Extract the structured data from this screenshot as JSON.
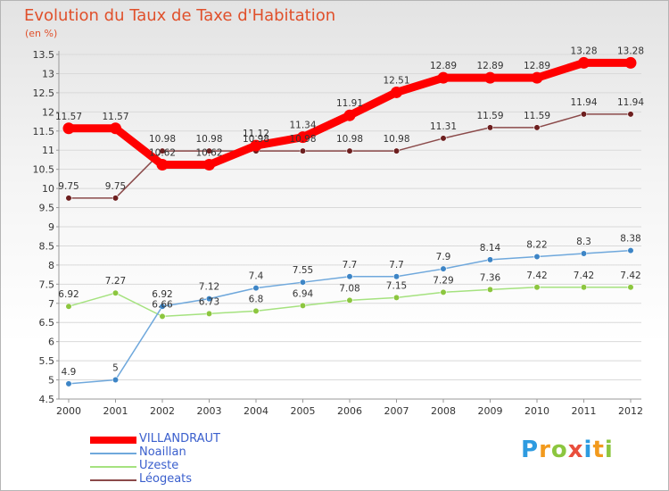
{
  "title": "Evolution du Taux de Taxe d'Habitation",
  "subtitle": "(en %)",
  "logo": {
    "text": "Proxiti",
    "letters": [
      {
        "ch": "P",
        "color": "#2e9be0"
      },
      {
        "ch": "r",
        "color": "#f29a1d"
      },
      {
        "ch": "o",
        "color": "#8cc63f"
      },
      {
        "ch": "x",
        "color": "#e94e3c"
      },
      {
        "ch": "i",
        "color": "#2e9be0"
      },
      {
        "ch": "t",
        "color": "#f29a1d"
      },
      {
        "ch": "i",
        "color": "#8cc63f"
      }
    ]
  },
  "chart_data": {
    "type": "line",
    "x": [
      "2000",
      "2001",
      "2002",
      "2003",
      "2004",
      "2005",
      "2006",
      "2007",
      "2008",
      "2009",
      "2010",
      "2011",
      "2012"
    ],
    "ylim": [
      4.5,
      13.5
    ],
    "yticks": [
      "4.5",
      "5",
      "5.5",
      "6",
      "6.5",
      "7",
      "7.5",
      "8",
      "8.5",
      "9",
      "9.5",
      "10",
      "10.5",
      "11",
      "11.5",
      "12",
      "12.5",
      "13",
      "13.5"
    ],
    "grid": "horizontal",
    "legend_position": "bottom-left",
    "series": [
      {
        "name": "VILLANDRAUT",
        "color": "#ff0000",
        "style": "thick",
        "values": [
          11.57,
          11.57,
          10.62,
          10.62,
          11.12,
          11.34,
          11.91,
          12.51,
          12.89,
          12.89,
          12.89,
          13.28,
          13.28
        ],
        "labels": [
          "11.57",
          "11.57",
          "10.62",
          "10.62",
          "11.12",
          "11.34",
          "11.91",
          "12.51",
          "12.89",
          "12.89",
          "12.89",
          "13.28",
          "13.28"
        ]
      },
      {
        "name": "Noaillan",
        "color": "#6fa8dc",
        "marker_color": "#3d85c6",
        "values": [
          4.9,
          5,
          6.92,
          7.12,
          7.4,
          7.55,
          7.7,
          7.7,
          7.9,
          8.14,
          8.22,
          8.3,
          8.38
        ],
        "labels": [
          "4.9",
          "5",
          "6.92",
          "7.12",
          "7.4",
          "7.55",
          "7.7",
          "7.7",
          "7.9",
          "8.14",
          "8.22",
          "8.3",
          "8.38"
        ]
      },
      {
        "name": "Uzeste",
        "color": "#a5e27f",
        "marker_color": "#8cc63f",
        "values": [
          6.92,
          7.27,
          6.66,
          6.73,
          6.8,
          6.94,
          7.08,
          7.15,
          7.29,
          7.36,
          7.42,
          7.42,
          7.42
        ],
        "labels": [
          "6.92",
          "7.27",
          "6.66",
          "6.73",
          "6.8",
          "6.94",
          "7.08",
          "7.15",
          "7.29",
          "7.36",
          "7.42",
          "7.42",
          "7.42"
        ]
      },
      {
        "name": "Léogeats",
        "color": "#8b4a4a",
        "marker_color": "#6d1f1f",
        "values": [
          9.75,
          9.75,
          10.98,
          10.98,
          10.98,
          10.98,
          10.98,
          10.98,
          11.31,
          11.59,
          11.59,
          11.94,
          11.94
        ],
        "labels": [
          "9.75",
          "9.75",
          "10.98",
          "10.98",
          "10.98",
          "10.98",
          "10.98",
          "10.98",
          "11.31",
          "11.59",
          "11.59",
          "11.94",
          "11.94"
        ]
      }
    ]
  }
}
